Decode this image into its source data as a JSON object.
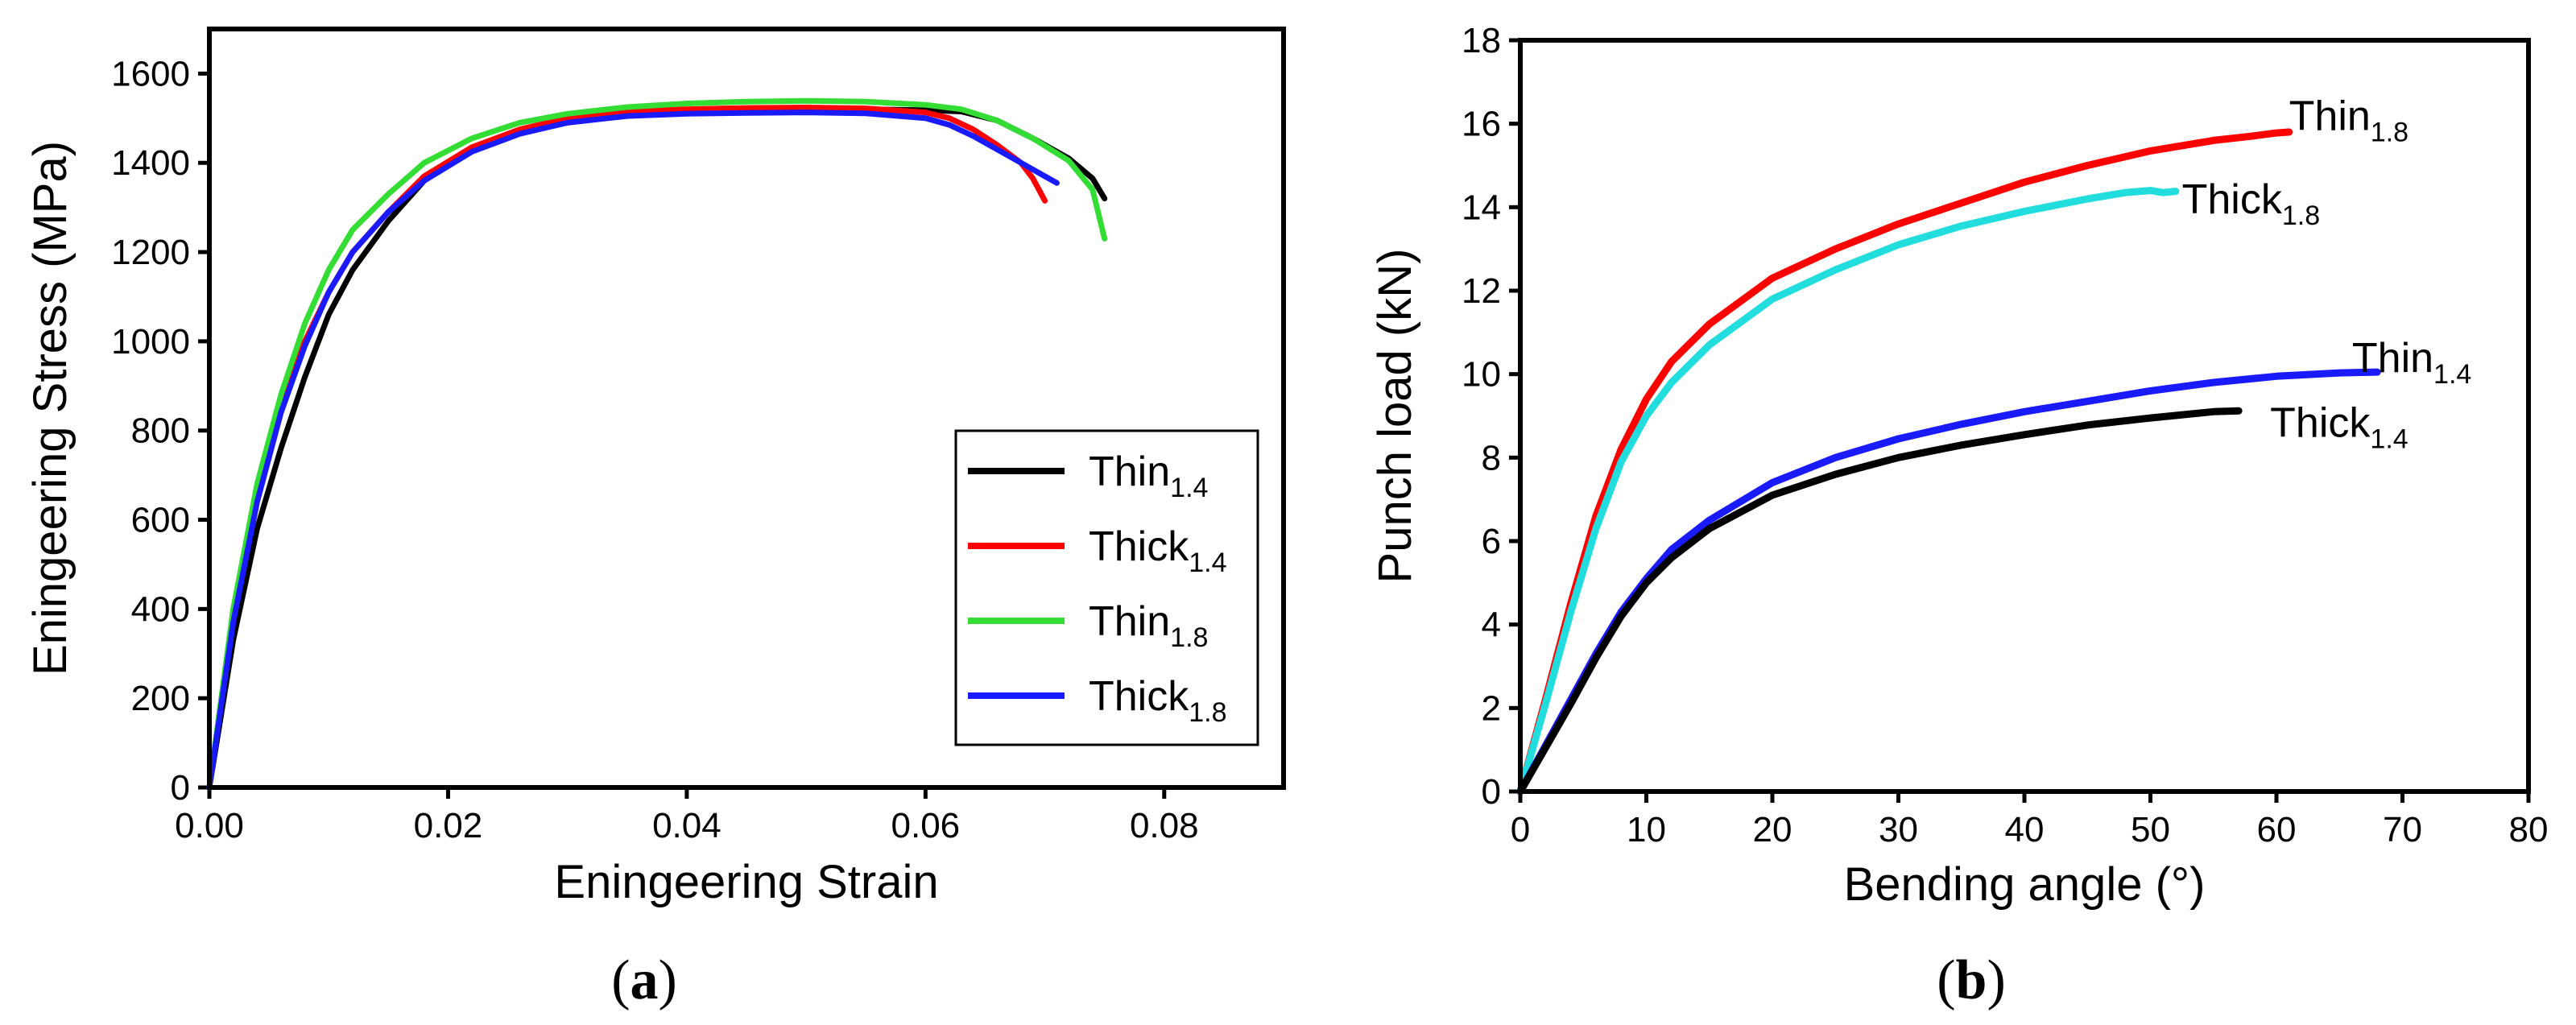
{
  "chart_data": [
    {
      "type": "line",
      "panel": "a",
      "xlabel": "Eningeering Strain",
      "ylabel": "Eningeering Stress (MPa)",
      "xlim": [
        0.0,
        0.09
      ],
      "ylim": [
        0,
        1700
      ],
      "xticks": [
        0.0,
        0.02,
        0.04,
        0.06,
        0.08
      ],
      "xtick_labels": [
        "0.00",
        "0.02",
        "0.04",
        "0.06",
        "0.08"
      ],
      "yticks": [
        0,
        200,
        400,
        600,
        800,
        1000,
        1200,
        1400,
        1600
      ],
      "ytick_labels": [
        "0",
        "200",
        "400",
        "600",
        "800",
        "1000",
        "1200",
        "1400",
        "1600"
      ],
      "legend_position": "right",
      "series": [
        {
          "name": "Thin",
          "subscript": "1.4",
          "color": "#000000",
          "x": [
            0.0,
            0.002,
            0.004,
            0.006,
            0.008,
            0.01,
            0.012,
            0.015,
            0.018,
            0.022,
            0.026,
            0.03,
            0.035,
            0.04,
            0.045,
            0.05,
            0.055,
            0.06,
            0.063,
            0.066,
            0.069,
            0.072,
            0.074,
            0.075
          ],
          "y": [
            0,
            330,
            580,
            760,
            920,
            1060,
            1160,
            1270,
            1360,
            1430,
            1470,
            1495,
            1510,
            1517,
            1520,
            1521,
            1520,
            1518,
            1515,
            1495,
            1455,
            1410,
            1365,
            1320
          ]
        },
        {
          "name": "Thick",
          "subscript": "1.4",
          "color": "#ff0000",
          "x": [
            0.0,
            0.002,
            0.004,
            0.006,
            0.008,
            0.01,
            0.012,
            0.015,
            0.018,
            0.022,
            0.026,
            0.03,
            0.035,
            0.04,
            0.045,
            0.05,
            0.055,
            0.06,
            0.062,
            0.064,
            0.066,
            0.068,
            0.069,
            0.07
          ],
          "y": [
            0,
            380,
            650,
            850,
            1000,
            1110,
            1200,
            1290,
            1370,
            1435,
            1475,
            1500,
            1515,
            1520,
            1523,
            1524,
            1522,
            1513,
            1500,
            1475,
            1440,
            1400,
            1365,
            1315
          ]
        },
        {
          "name": "Thin",
          "subscript": "1.8",
          "color": "#33dd33",
          "x": [
            0.0,
            0.002,
            0.004,
            0.006,
            0.008,
            0.01,
            0.012,
            0.015,
            0.018,
            0.022,
            0.026,
            0.03,
            0.035,
            0.04,
            0.045,
            0.05,
            0.055,
            0.06,
            0.063,
            0.066,
            0.069,
            0.072,
            0.074,
            0.075
          ],
          "y": [
            0,
            400,
            680,
            880,
            1040,
            1160,
            1250,
            1330,
            1400,
            1455,
            1490,
            1510,
            1525,
            1533,
            1537,
            1539,
            1537,
            1530,
            1520,
            1495,
            1455,
            1405,
            1340,
            1230
          ]
        },
        {
          "name": "Thick",
          "subscript": "1.8",
          "color": "#1a1aff",
          "x": [
            0.0,
            0.002,
            0.004,
            0.006,
            0.008,
            0.01,
            0.012,
            0.015,
            0.018,
            0.022,
            0.026,
            0.03,
            0.035,
            0.04,
            0.045,
            0.05,
            0.055,
            0.06,
            0.062,
            0.064,
            0.066,
            0.068,
            0.07,
            0.071
          ],
          "y": [
            0,
            370,
            640,
            840,
            990,
            1110,
            1200,
            1290,
            1360,
            1425,
            1465,
            1490,
            1505,
            1510,
            1512,
            1513,
            1511,
            1500,
            1485,
            1460,
            1430,
            1400,
            1370,
            1355
          ]
        }
      ]
    },
    {
      "type": "line",
      "panel": "b",
      "xlabel": "Bending angle (°)",
      "ylabel": "Punch load (kN)",
      "xlim": [
        0,
        80
      ],
      "ylim": [
        0,
        18
      ],
      "xticks": [
        0,
        10,
        20,
        30,
        40,
        50,
        60,
        70,
        80
      ],
      "xtick_labels": [
        "0",
        "10",
        "20",
        "30",
        "40",
        "50",
        "60",
        "70",
        "80"
      ],
      "yticks": [
        0,
        2,
        4,
        6,
        8,
        10,
        12,
        14,
        16,
        18
      ],
      "ytick_labels": [
        "0",
        "2",
        "4",
        "6",
        "8",
        "10",
        "12",
        "14",
        "16",
        "18"
      ],
      "series": [
        {
          "name": "Thin",
          "subscript": "1.8",
          "color": "#ff0000",
          "x": [
            0,
            2,
            4,
            6,
            8,
            10,
            12,
            15,
            20,
            25,
            30,
            35,
            40,
            45,
            50,
            55,
            58,
            60,
            61
          ],
          "y": [
            0,
            2.2,
            4.5,
            6.6,
            8.2,
            9.4,
            10.3,
            11.2,
            12.3,
            13.0,
            13.6,
            14.1,
            14.6,
            15.0,
            15.35,
            15.6,
            15.7,
            15.78,
            15.8
          ]
        },
        {
          "name": "Thick",
          "subscript": "1.8",
          "color": "#22dddd",
          "x": [
            0,
            2,
            4,
            6,
            8,
            10,
            12,
            15,
            20,
            25,
            30,
            35,
            40,
            45,
            48,
            50,
            51,
            52
          ],
          "y": [
            0,
            2.1,
            4.3,
            6.3,
            7.9,
            9.0,
            9.8,
            10.7,
            11.8,
            12.5,
            13.1,
            13.55,
            13.9,
            14.2,
            14.35,
            14.4,
            14.35,
            14.38
          ]
        },
        {
          "name": "Thin",
          "subscript": "1.4",
          "color": "#1a1aff",
          "x": [
            0,
            2,
            4,
            6,
            8,
            10,
            12,
            15,
            20,
            25,
            30,
            35,
            40,
            45,
            50,
            55,
            60,
            65,
            68
          ],
          "y": [
            0,
            1.1,
            2.2,
            3.3,
            4.3,
            5.1,
            5.8,
            6.5,
            7.4,
            8.0,
            8.45,
            8.8,
            9.1,
            9.35,
            9.6,
            9.8,
            9.95,
            10.03,
            10.05
          ]
        },
        {
          "name": "Thick",
          "subscript": "1.4",
          "color": "#000000",
          "x": [
            0,
            2,
            4,
            6,
            8,
            10,
            12,
            15,
            20,
            25,
            30,
            35,
            40,
            45,
            50,
            55,
            57
          ],
          "y": [
            0,
            1.05,
            2.1,
            3.2,
            4.2,
            5.0,
            5.6,
            6.3,
            7.1,
            7.6,
            8.0,
            8.3,
            8.55,
            8.78,
            8.95,
            9.1,
            9.12
          ]
        }
      ],
      "annotations": [
        {
          "text": "Thin",
          "subscript": "1.8",
          "at_x": 61,
          "at_y": 16.2
        },
        {
          "text": "Thick",
          "subscript": "1.8",
          "at_x": 52.5,
          "at_y": 14.2
        },
        {
          "text": "Thin",
          "subscript": "1.4",
          "at_x": 66,
          "at_y": 10.4
        },
        {
          "text": "Thick",
          "subscript": "1.4",
          "at_x": 59.5,
          "at_y": 8.85
        }
      ]
    }
  ],
  "panel_labels": {
    "a": {
      "open": "(",
      "letter": "a",
      "close": ")"
    },
    "b": {
      "open": "(",
      "letter": "b",
      "close": ")"
    }
  }
}
